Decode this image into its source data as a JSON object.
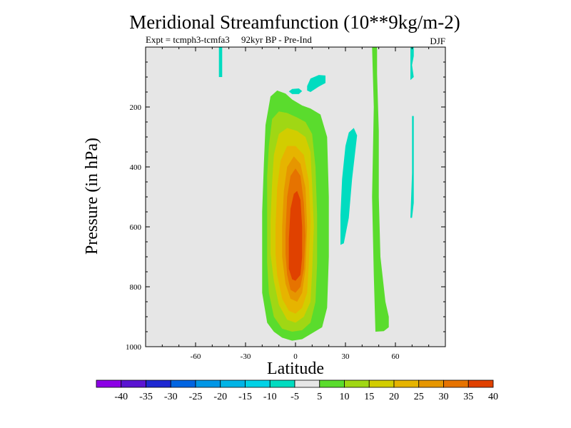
{
  "chart_data": {
    "type": "heatmap",
    "title": "Meridional Streamfunction (10**9kg/m-2)",
    "subtitle_left": "Expt = tcmph3-tcmfa3     92kyr BP - Pre-Ind",
    "subtitle_right": "DJF",
    "xlabel": "Latitude",
    "ylabel": "Pressure (in hPa)",
    "xlim": [
      -90,
      90
    ],
    "ylim": [
      0,
      1000
    ],
    "y_inverted": true,
    "x_ticks": [
      {
        "value": -60,
        "label": "-60"
      },
      {
        "value": -30,
        "label": "-30"
      },
      {
        "value": 0,
        "label": "0"
      },
      {
        "value": 30,
        "label": "30"
      },
      {
        "value": 60,
        "label": "60"
      }
    ],
    "y_ticks": [
      {
        "value": 200,
        "label": "200"
      },
      {
        "value": 400,
        "label": "400"
      },
      {
        "value": 600,
        "label": "600"
      },
      {
        "value": 800,
        "label": "800"
      },
      {
        "value": 1000,
        "label": "1000"
      }
    ],
    "missing_color": "#e6e6e6",
    "colorbar": {
      "colors": [
        "#8c00e6",
        "#5a14d2",
        "#1e28d2",
        "#0064e1",
        "#0096e6",
        "#00b4e6",
        "#00d2e6",
        "#00dcc0",
        "#e6e6e6",
        "#5adc2d",
        "#a0d714",
        "#d2cd00",
        "#e6b400",
        "#e69600",
        "#e67300",
        "#e04100"
      ],
      "boundaries": [
        -45,
        -40,
        -35,
        -30,
        -25,
        -20,
        -15,
        -10,
        -5,
        5,
        10,
        15,
        20,
        25,
        30,
        35,
        45
      ],
      "labels": [
        "-40",
        "-35",
        "-30",
        "-25",
        "-20",
        "-15",
        "-10",
        "-5",
        "5",
        "10",
        "15",
        "20",
        "25",
        "30",
        "35",
        "40"
      ]
    },
    "contours": [
      {
        "level": -5,
        "color": "#00dcc0",
        "regions": [
          [
            [
              -46,
              0
            ],
            [
              -44,
              0
            ],
            [
              -44,
              100
            ],
            [
              -46,
              100
            ]
          ],
          [
            [
              7,
              130
            ],
            [
              9,
              105
            ],
            [
              14,
              93
            ],
            [
              18,
              95
            ],
            [
              18,
              120
            ],
            [
              14,
              132
            ],
            [
              9,
              150
            ],
            [
              7,
              145
            ]
          ],
          [
            [
              -4,
              148
            ],
            [
              -2,
              140
            ],
            [
              2,
              138
            ],
            [
              4,
              147
            ],
            [
              2,
              157
            ],
            [
              -2,
              157
            ]
          ],
          [
            [
              30,
              330
            ],
            [
              32,
              285
            ],
            [
              35,
              270
            ],
            [
              37,
              295
            ],
            [
              34,
              440
            ],
            [
              32,
              570
            ],
            [
              29,
              655
            ],
            [
              27,
              660
            ],
            [
              27,
              560
            ],
            [
              28,
              440
            ]
          ],
          [
            [
              69,
              0
            ],
            [
              71,
              0
            ],
            [
              71,
              30
            ],
            [
              70,
              60
            ],
            [
              71,
              100
            ],
            [
              69,
              110
            ]
          ],
          [
            [
              70,
              230
            ],
            [
              71,
              230
            ],
            [
              71,
              520
            ],
            [
              70,
              570
            ],
            [
              69,
              570
            ],
            [
              70,
              420
            ]
          ]
        ]
      },
      {
        "level": 5,
        "color": "#5adc2d",
        "regions": [
          [
            [
              -20,
              550
            ],
            [
              -19,
              390
            ],
            [
              -18,
              260
            ],
            [
              -15,
              165
            ],
            [
              -11,
              145
            ],
            [
              -6,
              155
            ],
            [
              -2,
              175
            ],
            [
              4,
              195
            ],
            [
              9,
              205
            ],
            [
              15,
              225
            ],
            [
              19,
              300
            ],
            [
              20,
              500
            ],
            [
              20,
              700
            ],
            [
              19,
              870
            ],
            [
              16,
              935
            ],
            [
              10,
              955
            ],
            [
              4,
              975
            ],
            [
              -2,
              980
            ],
            [
              -8,
              970
            ],
            [
              -13,
              950
            ],
            [
              -17,
              920
            ],
            [
              -20,
              820
            ]
          ],
          [
            [
              46,
              0
            ],
            [
              49,
              0
            ],
            [
              49,
              90
            ],
            [
              50,
              280
            ],
            [
              50,
              500
            ],
            [
              51,
              700
            ],
            [
              54,
              850
            ],
            [
              56,
              900
            ],
            [
              56,
              935
            ],
            [
              53,
              948
            ],
            [
              48,
              950
            ],
            [
              47,
              760
            ],
            [
              46,
              500
            ],
            [
              47,
              200
            ]
          ]
        ]
      },
      {
        "level": 10,
        "color": "#a0d714",
        "regions": [
          [
            [
              -17,
              560
            ],
            [
              -17,
              430
            ],
            [
              -16,
              330
            ],
            [
              -14,
              240
            ],
            [
              -10,
              215
            ],
            [
              -5,
              220
            ],
            [
              1,
              235
            ],
            [
              6,
              250
            ],
            [
              10,
              290
            ],
            [
              12,
              400
            ],
            [
              13,
              560
            ],
            [
              13,
              720
            ],
            [
              12,
              850
            ],
            [
              9,
              920
            ],
            [
              4,
              945
            ],
            [
              -2,
              950
            ],
            [
              -8,
              940
            ],
            [
              -13,
              900
            ],
            [
              -16,
              820
            ],
            [
              -17,
              720
            ]
          ]
        ]
      },
      {
        "level": 15,
        "color": "#d2cd00",
        "regions": [
          [
            [
              -15,
              580
            ],
            [
              -14,
              450
            ],
            [
              -13,
              360
            ],
            [
              -10,
              290
            ],
            [
              -5,
              270
            ],
            [
              1,
              280
            ],
            [
              6,
              300
            ],
            [
              9,
              350
            ],
            [
              10,
              460
            ],
            [
              11,
              600
            ],
            [
              10,
              750
            ],
            [
              9,
              850
            ],
            [
              5,
              900
            ],
            [
              0,
              920
            ],
            [
              -5,
              910
            ],
            [
              -10,
              860
            ],
            [
              -13,
              780
            ],
            [
              -15,
              690
            ]
          ]
        ]
      },
      {
        "level": 20,
        "color": "#e6b400",
        "regions": [
          [
            [
              -12,
              600
            ],
            [
              -11,
              470
            ],
            [
              -9,
              380
            ],
            [
              -5,
              330
            ],
            [
              0,
              330
            ],
            [
              5,
              360
            ],
            [
              8,
              450
            ],
            [
              9,
              580
            ],
            [
              8,
              720
            ],
            [
              7,
              820
            ],
            [
              4,
              870
            ],
            [
              0,
              890
            ],
            [
              -4,
              880
            ],
            [
              -8,
              840
            ],
            [
              -11,
              760
            ],
            [
              -12,
              690
            ]
          ]
        ]
      },
      {
        "level": 25,
        "color": "#e69600",
        "regions": [
          [
            [
              -8,
              600
            ],
            [
              -7,
              480
            ],
            [
              -5,
              400
            ],
            [
              -1,
              365
            ],
            [
              3,
              390
            ],
            [
              6,
              470
            ],
            [
              7,
              600
            ],
            [
              6,
              740
            ],
            [
              4,
              820
            ],
            [
              1,
              850
            ],
            [
              -3,
              840
            ],
            [
              -6,
              790
            ],
            [
              -8,
              700
            ]
          ]
        ]
      },
      {
        "level": 30,
        "color": "#e67300",
        "regions": [
          [
            [
              -6,
              620
            ],
            [
              -5,
              500
            ],
            [
              -3,
              430
            ],
            [
              0,
              405
            ],
            [
              3,
              430
            ],
            [
              5,
              520
            ],
            [
              6,
              630
            ],
            [
              5,
              740
            ],
            [
              3,
              800
            ],
            [
              0,
              820
            ],
            [
              -3,
              810
            ],
            [
              -5,
              760
            ],
            [
              -6,
              690
            ]
          ]
        ]
      },
      {
        "level": 35,
        "color": "#e04100",
        "regions": [
          [
            [
              -4,
              640
            ],
            [
              -3,
              540
            ],
            [
              -1,
              490
            ],
            [
              1,
              480
            ],
            [
              3,
              510
            ],
            [
              4,
              600
            ],
            [
              4,
              700
            ],
            [
              3,
              760
            ],
            [
              0,
              780
            ],
            [
              -2,
              775
            ],
            [
              -4,
              740
            ],
            [
              -4,
              690
            ]
          ]
        ]
      }
    ]
  }
}
